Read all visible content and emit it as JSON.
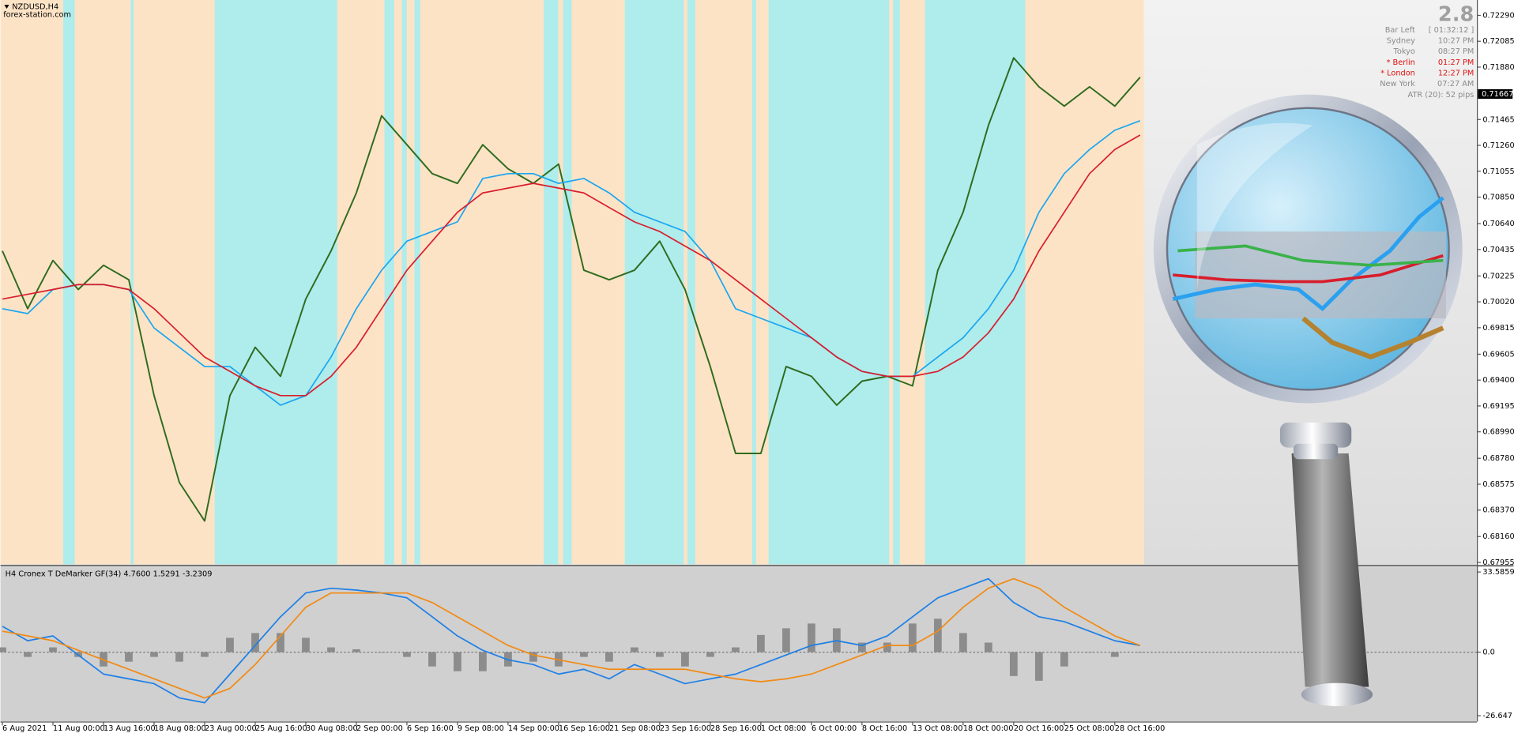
{
  "header": {
    "symbol": "NZDUSD,H4",
    "watermark": "forex-station.com"
  },
  "info": {
    "spread": 2.8,
    "rows": [
      {
        "label": "Bar Left",
        "time": "[ 01:32:12 ]",
        "color": "#8a8a8a"
      },
      {
        "label": "Sydney",
        "time": "10:27 PM",
        "color": "#8a8a8a"
      },
      {
        "label": "Tokyo",
        "time": "08:27 PM",
        "color": "#8a8a8a"
      },
      {
        "label": "* Berlin",
        "time": "01:27 PM",
        "color": "#e01010"
      },
      {
        "label": "* London",
        "time": "12:27 PM",
        "color": "#e01010"
      },
      {
        "label": "New York",
        "time": "07:27 AM",
        "color": "#8a8a8a"
      }
    ],
    "atr": "ATR (20): 52 pips"
  },
  "chart_data": [
    {
      "type": "line",
      "current_price": 0.71667,
      "ylim": [
        0.6794,
        0.72412
      ],
      "yticks": [
        {
          "value": 0.7229,
          "label": "0.72290"
        },
        0.72085,
        {
          "value": 0.7188,
          "label": "0.71880"
        },
        0.71465,
        {
          "value": 0.7126,
          "label": "0.71260"
        },
        0.71055,
        {
          "value": 0.7085,
          "label": "0.70850"
        },
        {
          "value": 0.7064,
          "label": "0.70640"
        },
        0.70435,
        0.70225,
        {
          "value": 0.7002,
          "label": "0.70020"
        },
        0.69815,
        0.69605,
        {
          "value": 0.694,
          "label": "0.69400"
        },
        0.69195,
        {
          "value": 0.6899,
          "label": "0.68990"
        },
        {
          "value": 0.6878,
          "label": "0.68780"
        },
        0.68575,
        {
          "value": 0.6837,
          "label": "0.68370"
        },
        {
          "value": 0.6816,
          "label": "0.68160"
        },
        0.67955
      ],
      "series": [
        {
          "color": "#2f6b1e",
          "values": [
            0.70424,
            0.69966,
            0.70348,
            0.70118,
            0.7031,
            0.70195,
            0.69277,
            0.68589,
            0.68283,
            0.69277,
            0.6966,
            0.6943,
            0.70042,
            0.70424,
            0.70883,
            0.71495,
            0.71265,
            0.71036,
            0.70959,
            0.71265,
            0.71074,
            0.70959,
            0.71112,
            0.70271,
            0.70195,
            0.70271,
            0.70501,
            0.70118,
            0.69507,
            0.68819,
            0.68819,
            0.69507,
            0.6943,
            0.69201,
            0.69392,
            0.6943,
            0.69354,
            0.70271,
            0.7073,
            0.71418,
            0.71953,
            0.71724,
            0.71571,
            0.71724,
            0.71571,
            0.718
          ]
        },
        {
          "color": "#1aa6f0",
          "values": [
            0.69966,
            0.69927,
            0.70118,
            0.70157,
            0.70157,
            0.70118,
            0.69813,
            0.6966,
            0.69507,
            0.69507,
            0.69354,
            0.69201,
            0.69277,
            0.69583,
            0.69966,
            0.70271,
            0.70501,
            0.70577,
            0.70654,
            0.70998,
            0.71036,
            0.71036,
            0.70959,
            0.70998,
            0.70883,
            0.7073,
            0.70654,
            0.70577,
            0.70348,
            0.69966,
            0.69889,
            0.69813,
            0.69736,
            0.69583,
            0.69469,
            0.6943,
            0.6943,
            0.69583,
            0.69736,
            0.69966,
            0.70271,
            0.7073,
            0.71036,
            0.71227,
            0.7138,
            0.71456
          ]
        },
        {
          "color": "#d81e2c",
          "values": [
            0.70042,
            0.7008,
            0.70118,
            0.70157,
            0.70157,
            0.70118,
            0.69966,
            0.69774,
            0.69583,
            0.69469,
            0.69354,
            0.69277,
            0.69277,
            0.6943,
            0.6966,
            0.69966,
            0.70271,
            0.70501,
            0.7073,
            0.70883,
            0.70921,
            0.70959,
            0.70921,
            0.70883,
            0.70768,
            0.70654,
            0.70577,
            0.70462,
            0.70348,
            0.70195,
            0.70042,
            0.69889,
            0.69736,
            0.69583,
            0.69469,
            0.6943,
            0.6943,
            0.69469,
            0.69583,
            0.69774,
            0.70042,
            0.70424,
            0.7073,
            0.71036,
            0.71227,
            0.71342
          ]
        }
      ]
    },
    {
      "type": "line",
      "title": "H4 Cronex T DeMarker GF(34) 4.7600 1.5291 -3.2309",
      "categories": [
        "6 Aug 2021",
        null,
        "11 Aug 00:00",
        null,
        "13 Aug 16:00",
        null,
        "18 Aug 08:00",
        null,
        "23 Aug 00:00",
        null,
        "25 Aug 16:00",
        null,
        "30 Aug 08:00",
        null,
        "2 Sep 00:00",
        null,
        "6 Sep 16:00",
        null,
        "9 Sep 08:00",
        null,
        "14 Sep 00:00",
        null,
        "16 Sep 16:00",
        null,
        "21 Sep 08:00",
        null,
        "23 Sep 16:00",
        null,
        "28 Sep 16:00",
        null,
        "1 Oct 08:00",
        null,
        "6 Oct 00:00",
        null,
        "8 Oct 16:00",
        null,
        "13 Oct 08:00",
        null,
        "18 Oct 00:00",
        null,
        "20 Oct 16:00",
        null,
        "25 Oct 08:00",
        null,
        "28 Oct 16:00",
        null
      ],
      "ylim": [
        -29.1,
        35.6
      ],
      "yticks": [
        33.5859,
        {
          "value": 0,
          "label": "0.0"
        },
        -26.647
      ],
      "series": [
        {
          "type": "bar",
          "color": "#8c8c8c",
          "values": [
            2.0,
            -2.0,
            2.0,
            -2.0,
            -6.0,
            -4.0,
            -2.0,
            -4.0,
            -2.0,
            6.0,
            8.0,
            8.0,
            6.0,
            2.0,
            1.2,
            0,
            -2.0,
            -6.0,
            -8.0,
            -8.0,
            -6.0,
            -4.0,
            -6.0,
            -2.0,
            -4.0,
            2.0,
            -2.0,
            -6.0,
            -2.0,
            2.0,
            7.2,
            10.0,
            12.0,
            10.0,
            4.0,
            4.0,
            12.0,
            14.0,
            8.0,
            4.0,
            -10.0,
            -12.0,
            -6.0,
            0,
            -2.0,
            0
          ]
        },
        {
          "type": "line",
          "color": "#1e7fe6",
          "values": [
            10.8,
            4.8,
            6.8,
            -1.2,
            -9.2,
            -11.2,
            -13.2,
            -19.2,
            -21.2,
            -9.2,
            2.8,
            14.8,
            24.8,
            26.8,
            26,
            24.8,
            22.8,
            14.8,
            6.8,
            0.8,
            -3.2,
            -5.2,
            -9.2,
            -7.2,
            -11.2,
            -5.2,
            -9.2,
            -13.2,
            -11.2,
            -9.2,
            -5.2,
            -1.2,
            2.8,
            4.8,
            2.8,
            6.8,
            14.8,
            22.8,
            26.8,
            30.8,
            20.8,
            14.8,
            12.8,
            8.8,
            4.8,
            2.8
          ]
        },
        {
          "type": "line",
          "color": "#f28a14",
          "values": [
            8.8,
            6.8,
            4.8,
            0.8,
            -3.2,
            -7.2,
            -11.2,
            -15.2,
            -19.2,
            -15.2,
            -5.2,
            6.8,
            18.8,
            24.8,
            24.8,
            24.8,
            24.8,
            20.8,
            14.8,
            8.8,
            2.8,
            -1.2,
            -3.2,
            -5.2,
            -7.2,
            -7.2,
            -7.2,
            -7.2,
            -9.2,
            -11.2,
            -12.4,
            -11.2,
            -9.2,
            -5.2,
            -1.2,
            2.8,
            2.8,
            8.8,
            18.8,
            26.8,
            30.8,
            26.8,
            18.8,
            12.8,
            6.8,
            2.8
          ]
        }
      ]
    }
  ]
}
